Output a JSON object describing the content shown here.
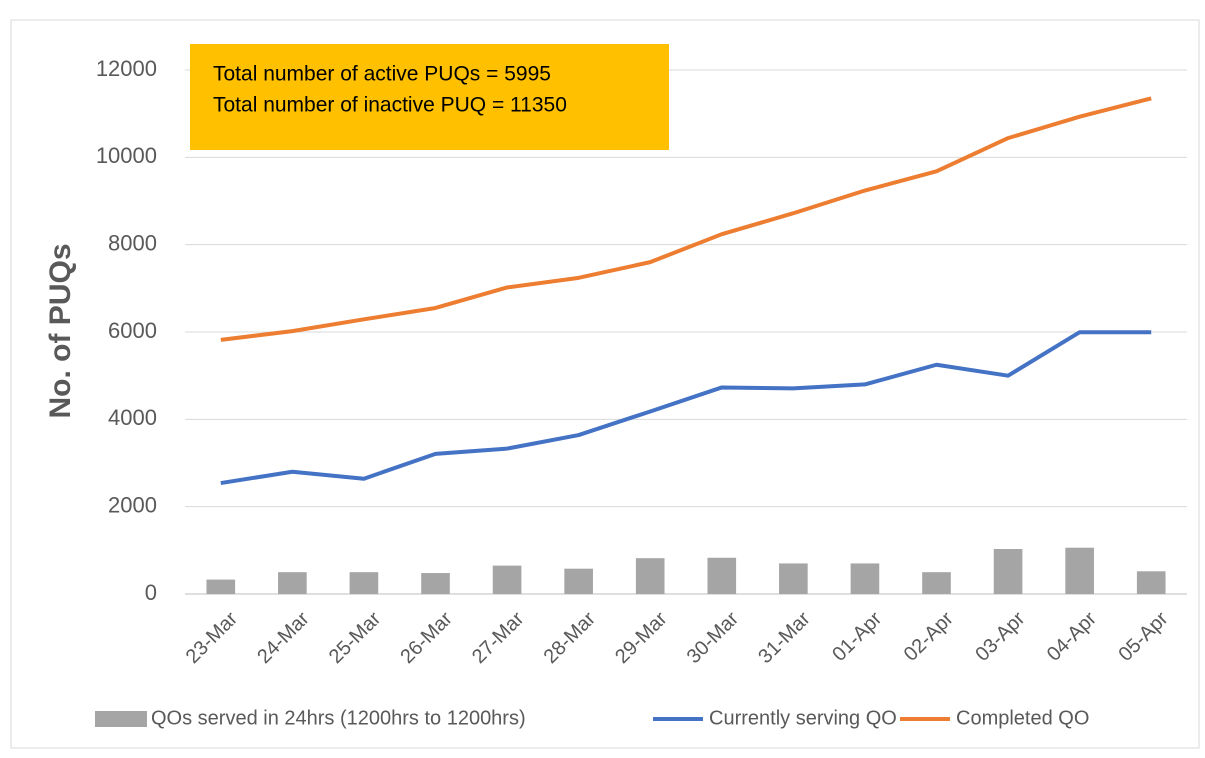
{
  "chart_data": {
    "type": "bar",
    "y_label": "No. of PUQs",
    "annotations": [
      "Total number of active PUQs = 5995",
      "Total number of inactive PUQ = 11350"
    ],
    "categories": [
      "23-Mar",
      "24-Mar",
      "25-Mar",
      "26-Mar",
      "27-Mar",
      "28-Mar",
      "29-Mar",
      "30-Mar",
      "31-Mar",
      "01-Apr",
      "02-Apr",
      "03-Apr",
      "04-Apr",
      "05-Apr"
    ],
    "series": [
      {
        "name": "QOs served in 24hrs (1200hrs to 1200hrs)",
        "type": "bar",
        "color": "#a5a5a5",
        "values": [
          330,
          500,
          500,
          480,
          650,
          580,
          820,
          830,
          700,
          700,
          500,
          1030,
          1060,
          520
        ]
      },
      {
        "name": "Currently serving QO",
        "type": "line",
        "color": "#4472c4",
        "values": [
          2540,
          2800,
          2640,
          3210,
          3330,
          3640,
          4180,
          4730,
          4710,
          4800,
          5250,
          5000,
          5995,
          5995
        ]
      },
      {
        "name": "Completed QO",
        "type": "line",
        "color": "#ed7d31",
        "values": [
          5820,
          6020,
          6290,
          6550,
          7020,
          7240,
          7600,
          8240,
          8720,
          9240,
          9680,
          10440,
          10930,
          11350
        ]
      }
    ],
    "ylim": [
      0,
      12000
    ],
    "yticks": [
      0,
      2000,
      4000,
      6000,
      8000,
      10000,
      12000
    ],
    "grid": true,
    "annotation_color": "#ffc000",
    "legend": "bottom"
  }
}
